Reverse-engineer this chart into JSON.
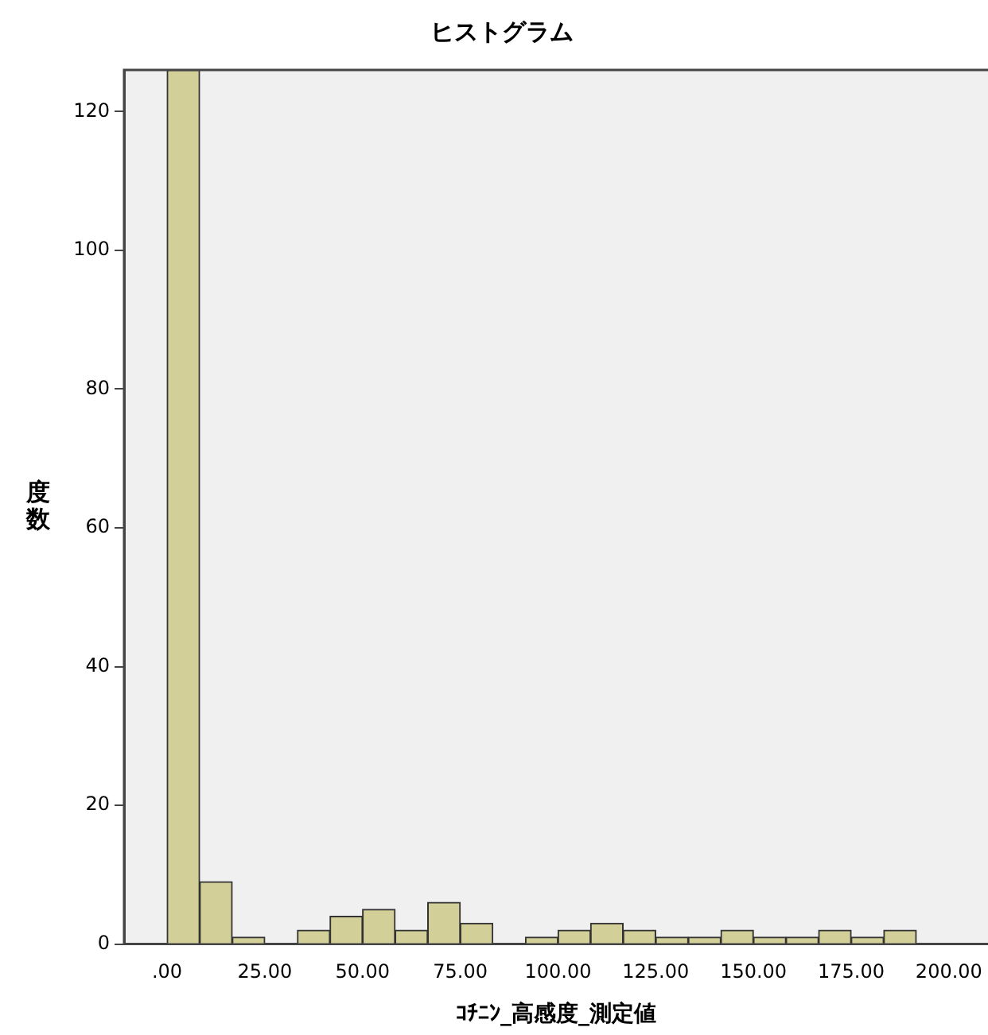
{
  "chart_data": {
    "type": "histogram",
    "title": "ヒストグラム",
    "xlabel": "ｺﾁﾆﾝ_高感度_測定値",
    "ylabel": "度数",
    "bins": [
      0,
      8.33,
      16.67,
      25,
      33.33,
      41.67,
      50,
      58.33,
      66.67,
      75,
      83.33,
      91.67,
      100,
      108.33,
      116.67,
      125,
      133.33,
      141.67,
      150,
      158.33,
      166.67,
      175,
      183.33,
      191.67
    ],
    "values": [
      126,
      9,
      1,
      0,
      2,
      4,
      5,
      2,
      6,
      3,
      0,
      1,
      2,
      3,
      2,
      1,
      1,
      2,
      1,
      1,
      2,
      1,
      2
    ],
    "color": "#d3cf98",
    "xlim": [
      -11,
      210
    ],
    "xticks": [
      {
        "value": 0,
        "label": ".00"
      },
      {
        "value": 25,
        "label": "25.00"
      },
      {
        "value": 50,
        "label": "50.00"
      },
      {
        "value": 75,
        "label": "75.00"
      },
      {
        "value": 100,
        "label": "100.00"
      },
      {
        "value": 125,
        "label": "125.00"
      },
      {
        "value": 150,
        "label": "150.00"
      },
      {
        "value": 175,
        "label": "175.00"
      },
      {
        "value": 200,
        "label": "200.00"
      }
    ],
    "ylim": [
      0,
      126
    ],
    "yticks": [
      0,
      20,
      40,
      60,
      80,
      100,
      120
    ],
    "grid": false
  }
}
